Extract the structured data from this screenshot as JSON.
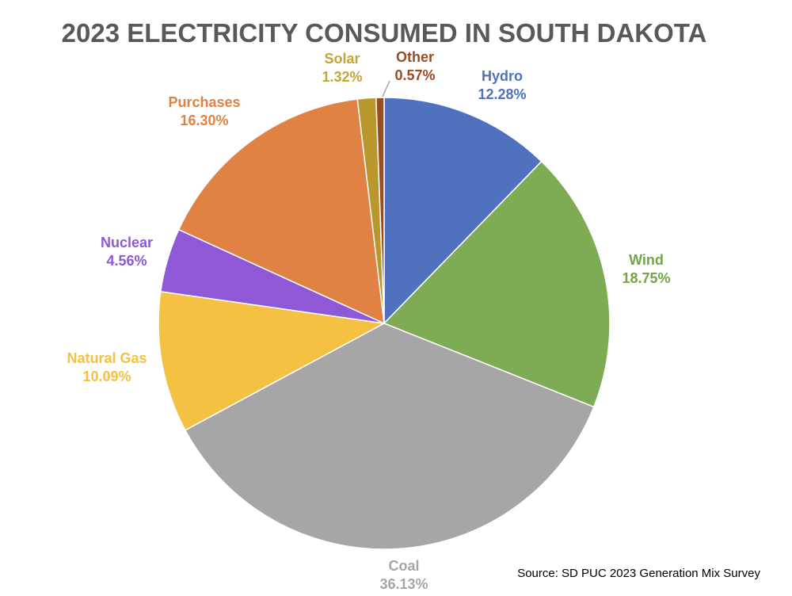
{
  "chart_data": {
    "type": "pie",
    "title": "2023 ELECTRICITY CONSUMED IN SOUTH DAKOTA",
    "source": "Source: SD PUC 2023 Generation Mix Survey",
    "start": "12 o'clock",
    "direction": "clockwise",
    "slices": [
      {
        "label": "Hydro",
        "value": 12.28,
        "display": "12.28%",
        "color": "#4f71be"
      },
      {
        "label": "Wind",
        "value": 18.75,
        "display": "18.75%",
        "color": "#7fab55"
      },
      {
        "label": "Coal",
        "value": 36.13,
        "display": "36.13%",
        "color": "#a6a6a6"
      },
      {
        "label": "Natural Gas",
        "value": 10.09,
        "display": "10.09%",
        "color": "#f5c143"
      },
      {
        "label": "Nuclear",
        "value": 4.56,
        "display": "4.56%",
        "color": "#8f58d6"
      },
      {
        "label": "Purchases",
        "value": 16.3,
        "display": "16.30%",
        "color": "#df8244"
      },
      {
        "label": "Solar",
        "value": 1.32,
        "display": "1.32%",
        "color": "#b9972c"
      },
      {
        "label": "Other",
        "value": 0.57,
        "display": "0.57%",
        "color": "#994c1f"
      }
    ],
    "label_colors": {
      "Hydro": "#4f71be",
      "Wind": "#70a645",
      "Coal": "#a6a6a6",
      "Natural Gas": "#f5c143",
      "Nuclear": "#8f58d6",
      "Purchases": "#df8244",
      "Solar": "#c4a43a",
      "Other": "#994c1f"
    },
    "title_color": "#595959",
    "source_color": "#000000",
    "slice_border_color": "#ffffff"
  }
}
